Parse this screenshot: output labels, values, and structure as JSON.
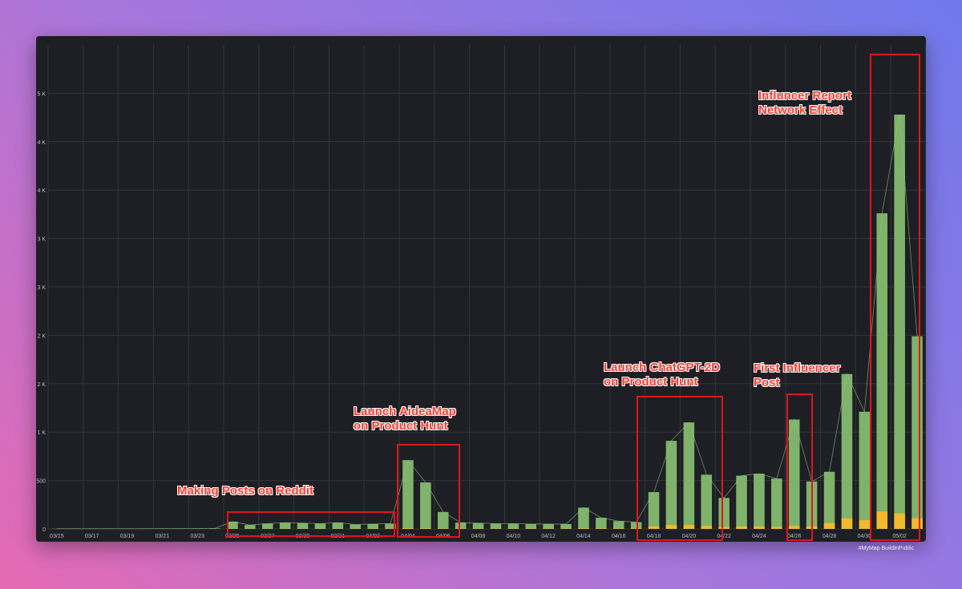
{
  "chart_data": {
    "type": "bar",
    "title": "",
    "xlabel": "",
    "ylabel": "",
    "ylim": [
      0,
      5000
    ],
    "yticks": [
      {
        "value": 0,
        "label": "0"
      },
      {
        "value": 500,
        "label": "500"
      },
      {
        "value": 1000,
        "label": "1 K"
      },
      {
        "value": 1500,
        "label": "2 K"
      },
      {
        "value": 2000,
        "label": "2 K"
      },
      {
        "value": 2500,
        "label": "3 K"
      },
      {
        "value": 3000,
        "label": "3 K"
      },
      {
        "value": 3500,
        "label": "4 K"
      },
      {
        "value": 4000,
        "label": "4 K"
      },
      {
        "value": 4500,
        "label": "5 K"
      }
    ],
    "grid": true,
    "categories": [
      "03/15",
      "03/16",
      "03/17",
      "03/18",
      "03/19",
      "03/20",
      "03/21",
      "03/22",
      "03/23",
      "03/24",
      "03/25",
      "03/26",
      "03/27",
      "03/28",
      "03/29",
      "03/30",
      "03/31",
      "04/01",
      "04/02",
      "04/03",
      "04/04",
      "04/05",
      "04/06",
      "04/07",
      "04/08",
      "04/09",
      "04/10",
      "04/11",
      "04/12",
      "04/13",
      "04/14",
      "04/15",
      "04/16",
      "04/17",
      "04/18",
      "04/19",
      "04/20",
      "04/21",
      "04/22",
      "04/23",
      "04/24",
      "04/25",
      "04/26",
      "04/27",
      "04/28",
      "04/29",
      "04/30",
      "05/01",
      "05/02",
      "05/03"
    ],
    "tick_labels": [
      "03/15",
      "",
      "03/17",
      "",
      "03/19",
      "",
      "03/21",
      "",
      "03/23",
      "",
      "03/25",
      "",
      "03/27",
      "",
      "03/29",
      "",
      "03/31",
      "",
      "04/02",
      "",
      "04/04",
      "",
      "04/06",
      "",
      "04/08",
      "",
      "04/10",
      "",
      "04/12",
      "",
      "04/14",
      "",
      "04/16",
      "",
      "04/18",
      "",
      "04/20",
      "",
      "04/22",
      "",
      "04/24",
      "",
      "04/26",
      "",
      "04/28",
      "",
      "04/30",
      "",
      "05/02",
      ""
    ],
    "series": [
      {
        "color": "#7fb26a",
        "values": [
          2,
          2,
          2,
          2,
          2,
          2,
          3,
          3,
          3,
          5,
          75,
          40,
          55,
          65,
          60,
          55,
          65,
          45,
          50,
          55,
          710,
          480,
          175,
          65,
          60,
          55,
          55,
          50,
          50,
          50,
          220,
          115,
          80,
          70,
          380,
          910,
          1100,
          560,
          320,
          550,
          570,
          520,
          1130,
          490,
          590,
          1600,
          1210,
          3260,
          4280,
          1990
        ]
      },
      {
        "color": "#f2b92e",
        "values": [
          0,
          0,
          0,
          0,
          0,
          0,
          0,
          0,
          0,
          0,
          2,
          2,
          2,
          2,
          2,
          2,
          2,
          2,
          2,
          2,
          8,
          6,
          4,
          3,
          3,
          3,
          3,
          3,
          3,
          3,
          6,
          5,
          5,
          5,
          25,
          40,
          40,
          30,
          20,
          25,
          25,
          20,
          30,
          25,
          60,
          110,
          90,
          180,
          160,
          110
        ]
      }
    ]
  },
  "annotations": [
    {
      "text": "Making Posts on Reddit"
    },
    {
      "text": "Launch AideaMap\non Product Hunt"
    },
    {
      "text": "Launch ChatGPT-2D\non Product Hunt"
    },
    {
      "text": "First Influencer\nPost"
    },
    {
      "text": "Influncer Report\nNetwork Effect"
    }
  ],
  "footer": {
    "hashtags": "#MyMap BuildInPublic"
  }
}
